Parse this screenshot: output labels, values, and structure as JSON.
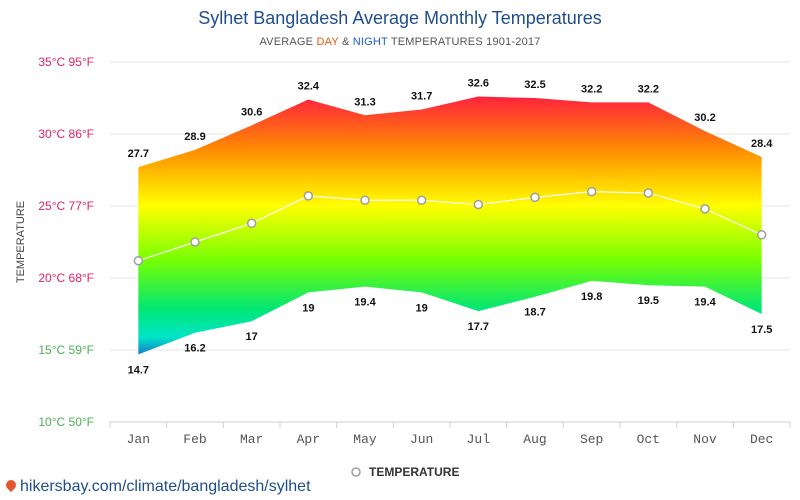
{
  "title": "Sylhet Bangladesh Average Monthly Temperatures",
  "subtitle": {
    "prefix": "AVERAGE ",
    "day": "DAY",
    "amp": " & ",
    "night": "NIGHT",
    "suffix": " TEMPERATURES 1901-2017"
  },
  "footer": "hikersbay.com/climate/bangladesh/sylhet",
  "colors": {
    "title": "#1f4e8c",
    "day": "#e8590c",
    "night": "#1e5bd7",
    "tick_hot": "#e0245e",
    "tick_cool": "#4caf50"
  },
  "chart_data": {
    "type": "area",
    "ylabel": "TEMPERATURE",
    "ylim": [
      10,
      35
    ],
    "grid": true,
    "categories": [
      "Jan",
      "Feb",
      "Mar",
      "Apr",
      "May",
      "Jun",
      "Jul",
      "Aug",
      "Sep",
      "Oct",
      "Nov",
      "Dec"
    ],
    "y_ticks": [
      {
        "value": 35,
        "label": "35°C 95°F"
      },
      {
        "value": 30,
        "label": "30°C 86°F"
      },
      {
        "value": 25,
        "label": "25°C 77°F"
      },
      {
        "value": 20,
        "label": "20°C 68°F"
      },
      {
        "value": 15,
        "label": "15°C 59°F"
      },
      {
        "value": 10,
        "label": "10°C 50°F"
      }
    ],
    "series": [
      {
        "name": "DAY",
        "values": [
          27.7,
          28.9,
          30.6,
          32.4,
          31.3,
          31.7,
          32.6,
          32.5,
          32.2,
          32.2,
          30.2,
          28.4
        ]
      },
      {
        "name": "NIGHT",
        "values": [
          14.7,
          16.2,
          17,
          19,
          19.4,
          19,
          17.7,
          18.7,
          19.8,
          19.5,
          19.4,
          17.5
        ]
      },
      {
        "name": "TEMPERATURE",
        "values": [
          21.2,
          22.5,
          23.8,
          25.7,
          25.4,
          25.4,
          25.1,
          25.6,
          26.0,
          25.9,
          24.8,
          23.0
        ]
      }
    ],
    "legend": {
      "label": "TEMPERATURE",
      "position": "bottom"
    }
  }
}
